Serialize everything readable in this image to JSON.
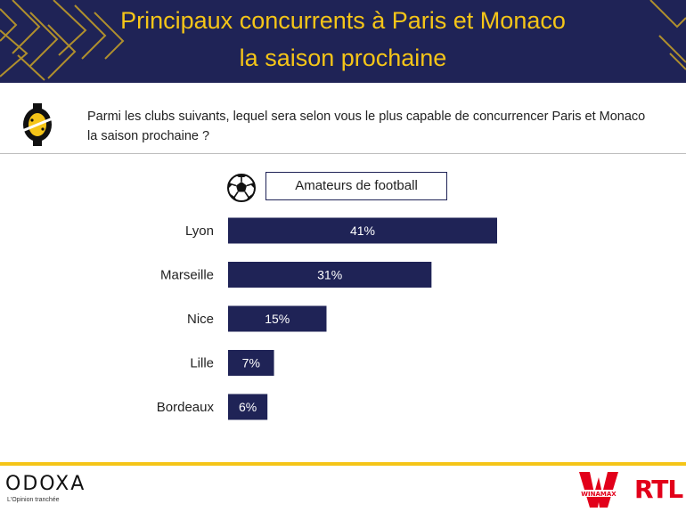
{
  "header": {
    "title_line1": "Principaux concurrents à Paris et Monaco",
    "title_line2": "la saison prochaine",
    "background_color": "#1f2356",
    "title_color": "#f5c518"
  },
  "question": {
    "text": "Parmi les clubs suivants, lequel sera selon vous le plus capable de concurrencer Paris et Monaco la saison prochaine ?"
  },
  "segment": {
    "label": "Amateurs de football",
    "icon": "soccer-ball-icon"
  },
  "chart_data": {
    "type": "bar",
    "orientation": "horizontal",
    "categories": [
      "Lyon",
      "Marseille",
      "Nice",
      "Lille",
      "Bordeaux"
    ],
    "values": [
      41,
      31,
      15,
      7,
      6
    ],
    "data_labels": [
      "41%",
      "31%",
      "15%",
      "7%",
      "6%"
    ],
    "unit": "%",
    "bar_color": "#1f2356",
    "label_color": "#ffffff",
    "xlim": [
      0,
      100
    ],
    "grid": false
  },
  "footer": {
    "brand": "ODOXA",
    "tagline": "L'Opinion tranchée",
    "sponsor1": "WINAMAX",
    "sponsor2": "RTL",
    "accent_color": "#f5c518",
    "sponsor_color": "#e2001a"
  }
}
